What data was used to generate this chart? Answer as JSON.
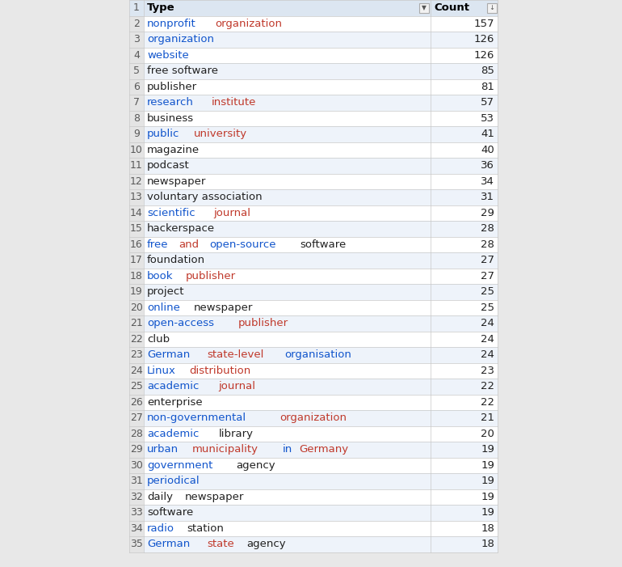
{
  "rows": [
    {
      "type": "nonprofit organization",
      "count": 157,
      "segments": [
        [
          "nonprofit",
          "blue"
        ],
        [
          " ",
          "black"
        ],
        [
          "organization",
          "orange"
        ]
      ]
    },
    {
      "type": "organization",
      "count": 126,
      "segments": [
        [
          "organization",
          "blue"
        ]
      ]
    },
    {
      "type": "website",
      "count": 126,
      "segments": [
        [
          "website",
          "blue"
        ]
      ]
    },
    {
      "type": "free software",
      "count": 85,
      "segments": [
        [
          "free software",
          "black"
        ]
      ]
    },
    {
      "type": "publisher",
      "count": 81,
      "segments": [
        [
          "publisher",
          "black"
        ]
      ]
    },
    {
      "type": "research institute",
      "count": 57,
      "segments": [
        [
          "research",
          "blue"
        ],
        [
          " ",
          "black"
        ],
        [
          "institute",
          "orange"
        ]
      ]
    },
    {
      "type": "business",
      "count": 53,
      "segments": [
        [
          "business",
          "black"
        ]
      ]
    },
    {
      "type": "public university",
      "count": 41,
      "segments": [
        [
          "public",
          "blue"
        ],
        [
          " ",
          "black"
        ],
        [
          "university",
          "orange"
        ]
      ]
    },
    {
      "type": "magazine",
      "count": 40,
      "segments": [
        [
          "magazine",
          "black"
        ]
      ]
    },
    {
      "type": "podcast",
      "count": 36,
      "segments": [
        [
          "podcast",
          "black"
        ]
      ]
    },
    {
      "type": "newspaper",
      "count": 34,
      "segments": [
        [
          "newspaper",
          "black"
        ]
      ]
    },
    {
      "type": "voluntary association",
      "count": 31,
      "segments": [
        [
          "voluntary association",
          "black"
        ]
      ]
    },
    {
      "type": "scientific journal",
      "count": 29,
      "segments": [
        [
          "scientific",
          "blue"
        ],
        [
          " ",
          "black"
        ],
        [
          "journal",
          "orange"
        ]
      ]
    },
    {
      "type": "hackerspace",
      "count": 28,
      "segments": [
        [
          "hackerspace",
          "black"
        ]
      ]
    },
    {
      "type": "free and open-source software",
      "count": 28,
      "segments": [
        [
          "free",
          "blue"
        ],
        [
          " ",
          "black"
        ],
        [
          "and",
          "orange"
        ],
        [
          " ",
          "black"
        ],
        [
          "open-source",
          "blue"
        ],
        [
          " ",
          "black"
        ],
        [
          "software",
          "black"
        ]
      ]
    },
    {
      "type": "foundation",
      "count": 27,
      "segments": [
        [
          "foundation",
          "black"
        ]
      ]
    },
    {
      "type": "book publisher",
      "count": 27,
      "segments": [
        [
          "book",
          "blue"
        ],
        [
          " ",
          "black"
        ],
        [
          "publisher",
          "orange"
        ]
      ]
    },
    {
      "type": "project",
      "count": 25,
      "segments": [
        [
          "project",
          "black"
        ]
      ]
    },
    {
      "type": "online newspaper",
      "count": 25,
      "segments": [
        [
          "online",
          "blue"
        ],
        [
          " ",
          "black"
        ],
        [
          "newspaper",
          "black"
        ]
      ]
    },
    {
      "type": "open-access publisher",
      "count": 24,
      "segments": [
        [
          "open-access",
          "blue"
        ],
        [
          " ",
          "black"
        ],
        [
          "publisher",
          "orange"
        ]
      ]
    },
    {
      "type": "club",
      "count": 24,
      "segments": [
        [
          "club",
          "black"
        ]
      ]
    },
    {
      "type": "German state-level organisation",
      "count": 24,
      "segments": [
        [
          "German",
          "blue"
        ],
        [
          " ",
          "black"
        ],
        [
          "state-level",
          "orange"
        ],
        [
          " ",
          "black"
        ],
        [
          "organisation",
          "blue"
        ]
      ]
    },
    {
      "type": "Linux distribution",
      "count": 23,
      "segments": [
        [
          "Linux",
          "blue"
        ],
        [
          " ",
          "black"
        ],
        [
          "distribution",
          "orange"
        ]
      ]
    },
    {
      "type": "academic journal",
      "count": 22,
      "segments": [
        [
          "academic",
          "blue"
        ],
        [
          " ",
          "black"
        ],
        [
          "journal",
          "orange"
        ]
      ]
    },
    {
      "type": "enterprise",
      "count": 22,
      "segments": [
        [
          "enterprise",
          "black"
        ]
      ]
    },
    {
      "type": "non-governmental organization",
      "count": 21,
      "segments": [
        [
          "non-governmental",
          "blue"
        ],
        [
          " ",
          "black"
        ],
        [
          "organization",
          "orange"
        ]
      ]
    },
    {
      "type": "academic library",
      "count": 20,
      "segments": [
        [
          "academic",
          "blue"
        ],
        [
          " ",
          "black"
        ],
        [
          "library",
          "black"
        ]
      ]
    },
    {
      "type": "urban municipality in Germany",
      "count": 19,
      "segments": [
        [
          "urban",
          "blue"
        ],
        [
          " ",
          "black"
        ],
        [
          "municipality",
          "orange"
        ],
        [
          " ",
          "black"
        ],
        [
          "in",
          "blue"
        ],
        [
          " ",
          "black"
        ],
        [
          "Germany",
          "orange"
        ]
      ]
    },
    {
      "type": "government agency",
      "count": 19,
      "segments": [
        [
          "government",
          "blue"
        ],
        [
          " ",
          "black"
        ],
        [
          "agency",
          "black"
        ]
      ]
    },
    {
      "type": "periodical",
      "count": 19,
      "segments": [
        [
          "periodical",
          "blue"
        ]
      ]
    },
    {
      "type": "daily newspaper",
      "count": 19,
      "segments": [
        [
          "daily",
          "black"
        ],
        [
          " ",
          "black"
        ],
        [
          "newspaper",
          "black"
        ]
      ]
    },
    {
      "type": "software",
      "count": 19,
      "segments": [
        [
          "software",
          "black"
        ]
      ]
    },
    {
      "type": "radio station",
      "count": 18,
      "segments": [
        [
          "radio",
          "blue"
        ],
        [
          " ",
          "black"
        ],
        [
          "station",
          "black"
        ]
      ]
    },
    {
      "type": "German state agency",
      "count": 18,
      "segments": [
        [
          "German",
          "blue"
        ],
        [
          " ",
          "black"
        ],
        [
          "state",
          "orange"
        ],
        [
          " ",
          "black"
        ],
        [
          "agency",
          "black"
        ]
      ]
    }
  ],
  "header_col1": "Type",
  "header_col2": "Count",
  "bg_outer": "#e8e8e8",
  "header_bg": "#dce6f1",
  "row_bg_white": "#ffffff",
  "row_bg_blue": "#eef3fa",
  "row_num_bg": "#e4e4e4",
  "grid_color": "#c8c8c8",
  "text_black": "#212121",
  "blue_color": "#1155cc",
  "orange_color": "#c0392b",
  "header_text": "#000000",
  "row_num_color": "#595959",
  "font_size": 9.5,
  "row_num_font_size": 9.0
}
